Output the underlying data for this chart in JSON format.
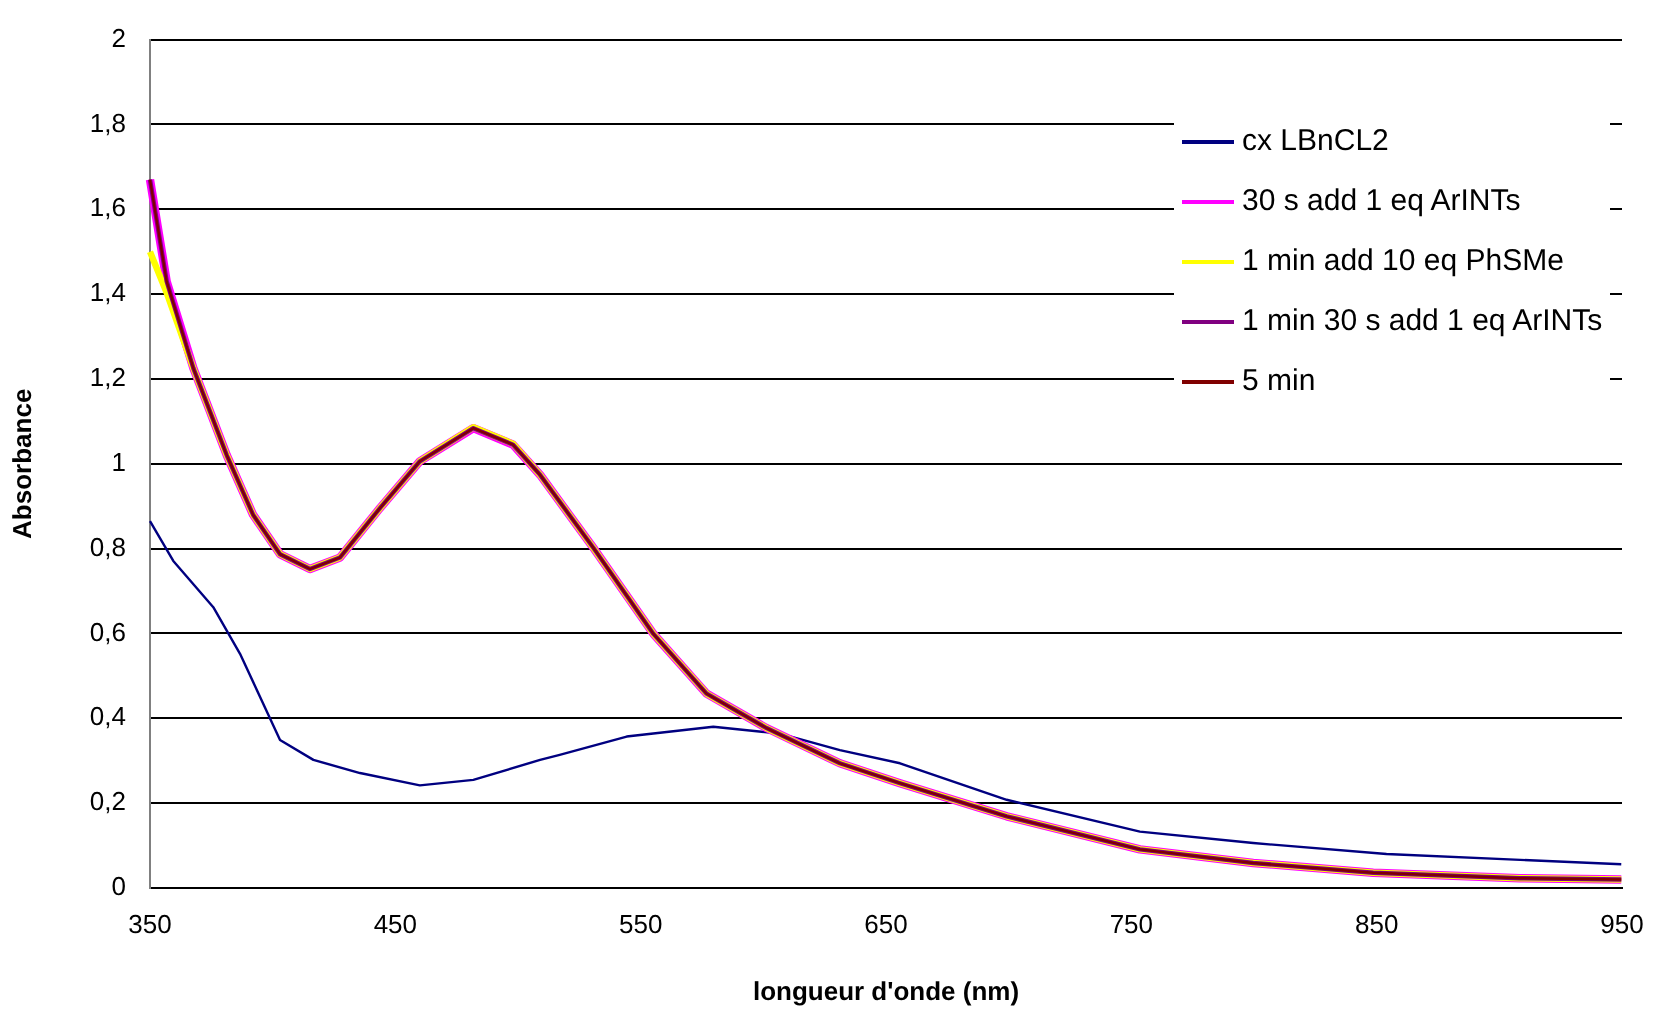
{
  "chart_data": {
    "type": "line",
    "xlabel": "longueur d'onde (nm)",
    "ylabel": "Absorbance",
    "xlim": [
      350,
      950
    ],
    "xticks": [
      350,
      450,
      550,
      650,
      750,
      850,
      950
    ],
    "ylim": [
      0,
      2
    ],
    "yticks": [
      0,
      {
        "value": 0.2,
        "label": "0,2"
      },
      {
        "value": 0.4,
        "label": "0,4"
      },
      {
        "value": 0.6,
        "label": "0,6"
      },
      {
        "value": 0.8,
        "label": "0,8"
      },
      1,
      {
        "value": 1.2,
        "label": "1,2"
      },
      {
        "value": 1.4,
        "label": "1,4"
      },
      {
        "value": 1.6,
        "label": "1,6"
      },
      {
        "value": 1.8,
        "label": "1,8"
      },
      2
    ],
    "grid": "y",
    "legend": "top right",
    "marker": "none",
    "line_style": "solid",
    "series": [
      {
        "name": "cx LBnCL2",
        "color": "#000080",
        "x": [
          350,
          359.5,
          375.8,
          386.7,
          403,
          416.6,
          435.6,
          460,
          481.8,
          509,
          517,
          544.3,
          579.6,
          606.8,
          631.2,
          655.7,
          699.2,
          753.5,
          799.7,
          854,
          949.7
        ],
        "values": [
          0.865,
          0.771,
          0.662,
          0.552,
          0.349,
          0.302,
          0.271,
          0.242,
          0.255,
          0.302,
          0.314,
          0.357,
          0.38,
          0.364,
          0.325,
          0.294,
          0.208,
          0.133,
          0.106,
          0.08,
          0.056
        ]
      },
      {
        "name": "30 s add 1 eq ArINTs",
        "color": "#ff00ff",
        "x": [
          350,
          356.8,
          367.7,
          381.3,
          392,
          403,
          415.2,
          427.4,
          443.8,
          460,
          481.8,
          498,
          509,
          530.7,
          555.2,
          576.9,
          601.3,
          631.2,
          655.7,
          699.2,
          753.5,
          799.7,
          848.6,
          908.4,
          949.7
        ],
        "values": [
          1.67,
          1.43,
          1.225,
          1.02,
          0.88,
          0.787,
          0.752,
          0.779,
          0.896,
          1.006,
          1.084,
          1.045,
          0.974,
          0.802,
          0.599,
          0.458,
          0.377,
          0.294,
          0.247,
          0.169,
          0.091,
          0.059,
          0.036,
          0.023,
          0.02
        ]
      },
      {
        "name": "1 min add 10 eq PhSMe",
        "color": "#ffff00",
        "x": [
          350,
          357,
          367.7,
          381.3,
          392,
          403,
          415.2,
          427.4,
          443.8,
          460,
          481.8,
          498,
          509,
          530.7,
          555.2,
          576.9,
          601.3,
          631.2,
          655.7,
          699.2,
          753.5,
          799.7,
          848.6,
          908.4,
          949.7
        ],
        "values": [
          1.5,
          1.4,
          1.225,
          1.02,
          0.88,
          0.787,
          0.752,
          0.779,
          0.896,
          1.006,
          1.086,
          1.047,
          0.974,
          0.802,
          0.599,
          0.458,
          0.377,
          0.294,
          0.247,
          0.169,
          0.091,
          0.059,
          0.036,
          0.023,
          0.02
        ]
      },
      {
        "name": "1 min 30 s add 1 eq ArINTs",
        "color": "#800080",
        "x": [
          350,
          356.8,
          367.7,
          381.3,
          392,
          403,
          415.2,
          427.4,
          443.8,
          460,
          481.8,
          498,
          509,
          530.7,
          555.2,
          576.9,
          601.3,
          631.2,
          655.7,
          699.2,
          753.5,
          799.7,
          848.6,
          908.4,
          949.7
        ],
        "values": [
          1.67,
          1.43,
          1.225,
          1.02,
          0.88,
          0.787,
          0.752,
          0.779,
          0.896,
          1.006,
          1.084,
          1.045,
          0.974,
          0.802,
          0.599,
          0.458,
          0.377,
          0.294,
          0.247,
          0.169,
          0.091,
          0.059,
          0.036,
          0.023,
          0.02
        ]
      },
      {
        "name": "5 min",
        "color": "#800000",
        "x": [
          350,
          356.8,
          367.7,
          381.3,
          392,
          403,
          415.2,
          427.4,
          443.8,
          460,
          481.8,
          498,
          509,
          530.7,
          555.2,
          576.9,
          601.3,
          631.2,
          655.7,
          699.2,
          753.5,
          799.7,
          848.6,
          908.4,
          949.7
        ],
        "values": [
          1.67,
          1.43,
          1.225,
          1.02,
          0.88,
          0.787,
          0.752,
          0.779,
          0.896,
          1.006,
          1.084,
          1.045,
          0.974,
          0.802,
          0.599,
          0.458,
          0.377,
          0.294,
          0.247,
          0.169,
          0.091,
          0.059,
          0.036,
          0.023,
          0.02
        ]
      }
    ]
  }
}
